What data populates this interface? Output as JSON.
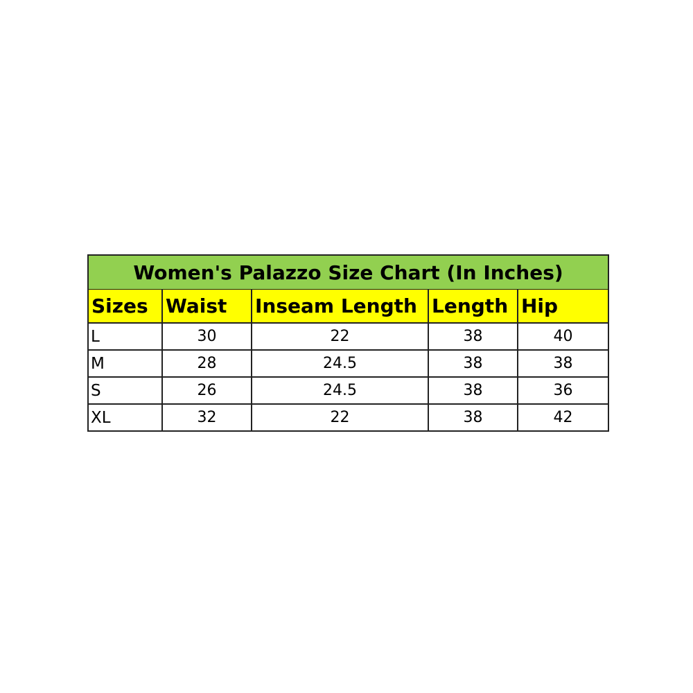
{
  "title": "Women's Palazzo Size Chart (In Inches)",
  "colors": {
    "title_bg": "#92d050",
    "header_bg": "#ffff00"
  },
  "headers": [
    "Sizes",
    "Waist",
    "Inseam Length",
    "Length",
    "Hip"
  ],
  "rows": [
    [
      "L",
      "30",
      "22",
      "38",
      "40"
    ],
    [
      "M",
      "28",
      "24.5",
      "38",
      "38"
    ],
    [
      "S",
      "26",
      "24.5",
      "38",
      "36"
    ],
    [
      "XL",
      "32",
      "22",
      "38",
      "42"
    ]
  ]
}
